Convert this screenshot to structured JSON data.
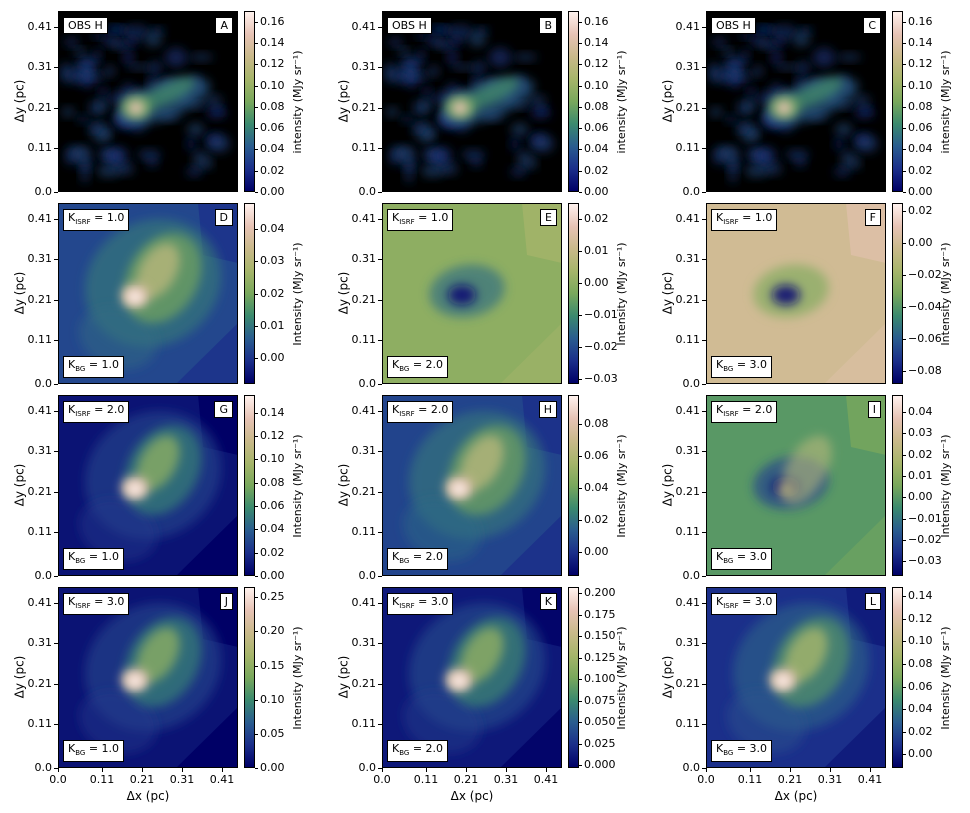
{
  "colormap": [
    "#000066",
    "#1b2f8a",
    "#2a5c8f",
    "#3b8a6e",
    "#79a85c",
    "#a6b56a",
    "#c9b98a",
    "#e7c3b5",
    "#fff2ee"
  ],
  "chart_data": {
    "type": "heatmap",
    "layout": "4 rows x 3 columns of image panels with colorbars",
    "x_axis": {
      "label": "Δx (pc)",
      "ticks": [
        "0.0",
        "0.11",
        "0.21",
        "0.31",
        "0.41"
      ],
      "range": [
        0.0,
        0.45
      ]
    },
    "y_axis": {
      "label": "Δy (pc)",
      "ticks": [
        "0.0",
        "0.11",
        "0.21",
        "0.31",
        "0.41"
      ],
      "range": [
        0.0,
        0.45
      ]
    },
    "panels": [
      {
        "id": "A",
        "row": 0,
        "col": 0,
        "kind": "obs",
        "label": "OBS H",
        "isrf": null,
        "bg": null,
        "cb_label": "intensity (MJy sr⁻¹)",
        "cb_range": [
          0.0,
          0.17
        ],
        "cb_ticks": [
          "0.00",
          "0.02",
          "0.04",
          "0.06",
          "0.08",
          "0.10",
          "0.12",
          "0.14",
          "0.16"
        ]
      },
      {
        "id": "B",
        "row": 0,
        "col": 1,
        "kind": "obs",
        "label": "OBS H",
        "isrf": null,
        "bg": null,
        "cb_label": "intensity (MJy sr⁻¹)",
        "cb_range": [
          0.0,
          0.17
        ],
        "cb_ticks": [
          "0.00",
          "0.02",
          "0.04",
          "0.06",
          "0.08",
          "0.10",
          "0.12",
          "0.14",
          "0.16"
        ]
      },
      {
        "id": "C",
        "row": 0,
        "col": 2,
        "kind": "obs",
        "label": "OBS H",
        "isrf": null,
        "bg": null,
        "cb_label": "intensity (MJy sr⁻¹)",
        "cb_range": [
          0.0,
          0.17
        ],
        "cb_ticks": [
          "0.00",
          "0.02",
          "0.04",
          "0.06",
          "0.08",
          "0.10",
          "0.12",
          "0.14",
          "0.16"
        ]
      },
      {
        "id": "D",
        "row": 1,
        "col": 0,
        "kind": "model",
        "isrf": "1.0",
        "bg": "1.0",
        "cb_label": "Intensity (MJy sr⁻¹)",
        "cb_range": [
          -0.008,
          0.048
        ],
        "cb_ticks": [
          "0.00",
          "0.01",
          "0.02",
          "0.03",
          "0.04"
        ]
      },
      {
        "id": "E",
        "row": 1,
        "col": 1,
        "kind": "resid",
        "isrf": "1.0",
        "bg": "2.0",
        "cb_label": "Intensity (MJy sr⁻¹)",
        "cb_range": [
          -0.0315,
          0.025
        ],
        "cb_ticks": [
          "−0.03",
          "−0.02",
          "−0.01",
          "0.00",
          "0.01",
          "0.02"
        ]
      },
      {
        "id": "F",
        "row": 1,
        "col": 2,
        "kind": "resid",
        "isrf": "1.0",
        "bg": "3.0",
        "cb_label": "Intensity (MJy sr⁻¹)",
        "cb_range": [
          -0.088,
          0.025
        ],
        "cb_ticks": [
          "−0.08",
          "−0.06",
          "−0.04",
          "−0.02",
          "0.00",
          "0.02"
        ]
      },
      {
        "id": "G",
        "row": 2,
        "col": 0,
        "kind": "model",
        "isrf": "2.0",
        "bg": "1.0",
        "cb_label": "Intensity (MJy sr⁻¹)",
        "cb_range": [
          0.0,
          0.155
        ],
        "cb_ticks": [
          "0.00",
          "0.02",
          "0.04",
          "0.06",
          "0.08",
          "0.10",
          "0.12",
          "0.14"
        ]
      },
      {
        "id": "H",
        "row": 2,
        "col": 1,
        "kind": "model",
        "isrf": "2.0",
        "bg": "2.0",
        "cb_label": "Intensity (MJy sr⁻¹)",
        "cb_range": [
          -0.015,
          0.098
        ],
        "cb_ticks": [
          "0.00",
          "0.02",
          "0.04",
          "0.06",
          "0.08"
        ]
      },
      {
        "id": "I",
        "row": 2,
        "col": 2,
        "kind": "resid",
        "isrf": "2.0",
        "bg": "3.0",
        "cb_label": "Intensity (MJy sr⁻¹)",
        "cb_range": [
          -0.037,
          0.048
        ],
        "cb_ticks": [
          "−0.03",
          "−0.02",
          "−0.01",
          "0.00",
          "0.01",
          "0.02",
          "0.03",
          "0.04"
        ]
      },
      {
        "id": "J",
        "row": 3,
        "col": 0,
        "kind": "model",
        "isrf": "3.0",
        "bg": "1.0",
        "cb_label": "Intensity (MJy sr⁻¹)",
        "cb_range": [
          0.0,
          0.265
        ],
        "cb_ticks": [
          "0.00",
          "0.05",
          "0.10",
          "0.15",
          "0.20",
          "0.25"
        ]
      },
      {
        "id": "K",
        "row": 3,
        "col": 1,
        "kind": "model",
        "isrf": "3.0",
        "bg": "2.0",
        "cb_label": "Intensity (MJy sr⁻¹)",
        "cb_range": [
          -0.003,
          0.207
        ],
        "cb_ticks": [
          "0.000",
          "0.025",
          "0.050",
          "0.075",
          "0.100",
          "0.125",
          "0.150",
          "0.175",
          "0.200"
        ]
      },
      {
        "id": "L",
        "row": 3,
        "col": 2,
        "kind": "model",
        "isrf": "3.0",
        "bg": "3.0",
        "cb_label": "Intensity (MJy sr⁻¹)",
        "cb_range": [
          -0.012,
          0.148
        ],
        "cb_ticks": [
          "0.00",
          "0.02",
          "0.04",
          "0.06",
          "0.08",
          "0.10",
          "0.12",
          "0.14"
        ]
      }
    ]
  }
}
